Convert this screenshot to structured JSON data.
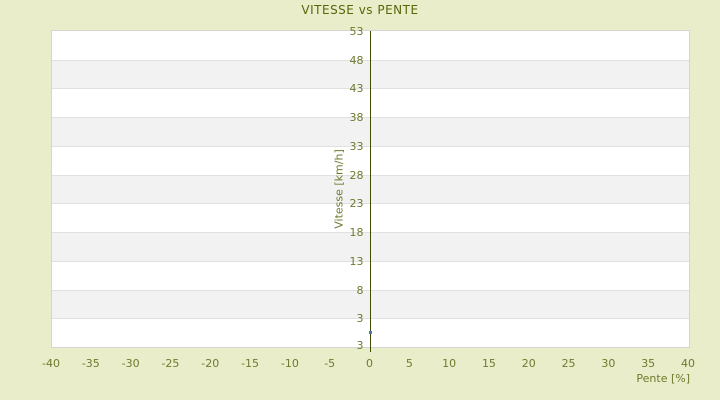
{
  "chart_data": {
    "type": "scatter",
    "title": "VITESSE vs PENTE",
    "xlabel": "Pente [%]",
    "ylabel": "Vitesse [km/h]",
    "x_ticks": [
      "-40",
      "-35",
      "-30",
      "-25",
      "-20",
      "-15",
      "-10",
      "-5",
      "0",
      "5",
      "10",
      "15",
      "20",
      "25",
      "30",
      "35",
      "40"
    ],
    "y_ticks": [
      "53",
      "48",
      "43",
      "38",
      "33",
      "28",
      "23",
      "18",
      "13",
      "8",
      "3",
      "3"
    ],
    "xlim": [
      -40,
      40
    ],
    "ylim": [
      -2,
      53
    ],
    "grid": "horizontal-bands",
    "legend": "none",
    "series": [
      {
        "name": "vitesse",
        "points": [
          {
            "x": 0,
            "y": 0.5
          }
        ]
      }
    ],
    "axis_line_x": 0
  },
  "colors": {
    "background": "#e9edc9",
    "title_text": "#576609",
    "tick_text": "#6e7a2e",
    "band_gray": "#f2f2f2",
    "band_white": "#ffffff",
    "gridline": "#e0e0e0",
    "plot_border": "#d5d5d5",
    "axis_line": "#3f4c08",
    "point": "#4c7ba1"
  }
}
